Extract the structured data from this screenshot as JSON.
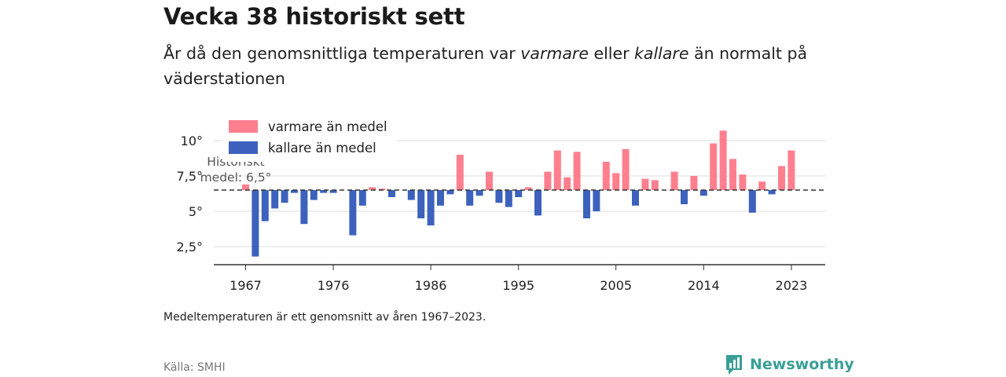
{
  "title": "Vecka 38 historiskt sett",
  "subtitle": {
    "part1": "År då den genomsnittliga temperaturen var ",
    "em1": "varmare",
    "part2": " eller ",
    "em2": "kallare",
    "part3": " än normalt på väderstationen"
  },
  "note": "Medeltemperaturen är ett genomsnitt av åren 1967–2023.",
  "source": "Källa: SMHI",
  "brand": {
    "name": "Newsworthy",
    "icon": "newsworthy-logo-icon",
    "color": "#3a9f96"
  },
  "chart_data": {
    "type": "bar",
    "baseline": 6.5,
    "baseline_label": [
      "Historiskt",
      "medel: 6,5°"
    ],
    "ylim": [
      1.5,
      11
    ],
    "yticks": [
      2.5,
      5,
      7.5,
      10
    ],
    "ytick_labels": [
      "2,5°",
      "5°",
      "7,5°",
      "10°"
    ],
    "xticks": [
      1967,
      1976,
      1986,
      1995,
      2005,
      2014,
      2023
    ],
    "xtick_labels": [
      "1967",
      "1976",
      "1986",
      "1995",
      "2005",
      "2014",
      "2023"
    ],
    "legend": {
      "position": "top-left",
      "warm": {
        "label": "varmare än medel",
        "color": "#ff7f8e"
      },
      "cold": {
        "label": "kallare än medel",
        "color": "#3d62bd"
      }
    },
    "grid": true,
    "years": [
      1967,
      1968,
      1969,
      1970,
      1971,
      1972,
      1973,
      1974,
      1975,
      1976,
      1977,
      1978,
      1979,
      1980,
      1981,
      1982,
      1983,
      1984,
      1985,
      1986,
      1987,
      1988,
      1989,
      1990,
      1991,
      1992,
      1993,
      1994,
      1995,
      1996,
      1997,
      1998,
      1999,
      2000,
      2001,
      2002,
      2003,
      2004,
      2005,
      2006,
      2007,
      2008,
      2009,
      2010,
      2011,
      2012,
      2013,
      2014,
      2015,
      2016,
      2017,
      2018,
      2019,
      2020,
      2021,
      2022,
      2023
    ],
    "values": [
      6.9,
      1.8,
      4.3,
      5.2,
      5.6,
      6.3,
      4.1,
      5.8,
      6.3,
      6.3,
      null,
      3.3,
      5.4,
      6.7,
      6.6,
      6.0,
      null,
      5.8,
      4.5,
      4.0,
      5.4,
      6.2,
      9.0,
      5.4,
      6.1,
      7.8,
      5.6,
      5.3,
      6.0,
      6.7,
      4.7,
      7.8,
      9.3,
      7.4,
      9.2,
      4.5,
      5.0,
      8.5,
      7.7,
      9.4,
      5.4,
      7.3,
      7.2,
      null,
      7.8,
      5.5,
      7.5,
      6.1,
      9.8,
      10.7,
      8.7,
      7.6,
      4.9,
      7.1,
      6.2,
      8.2,
      9.3
    ]
  }
}
